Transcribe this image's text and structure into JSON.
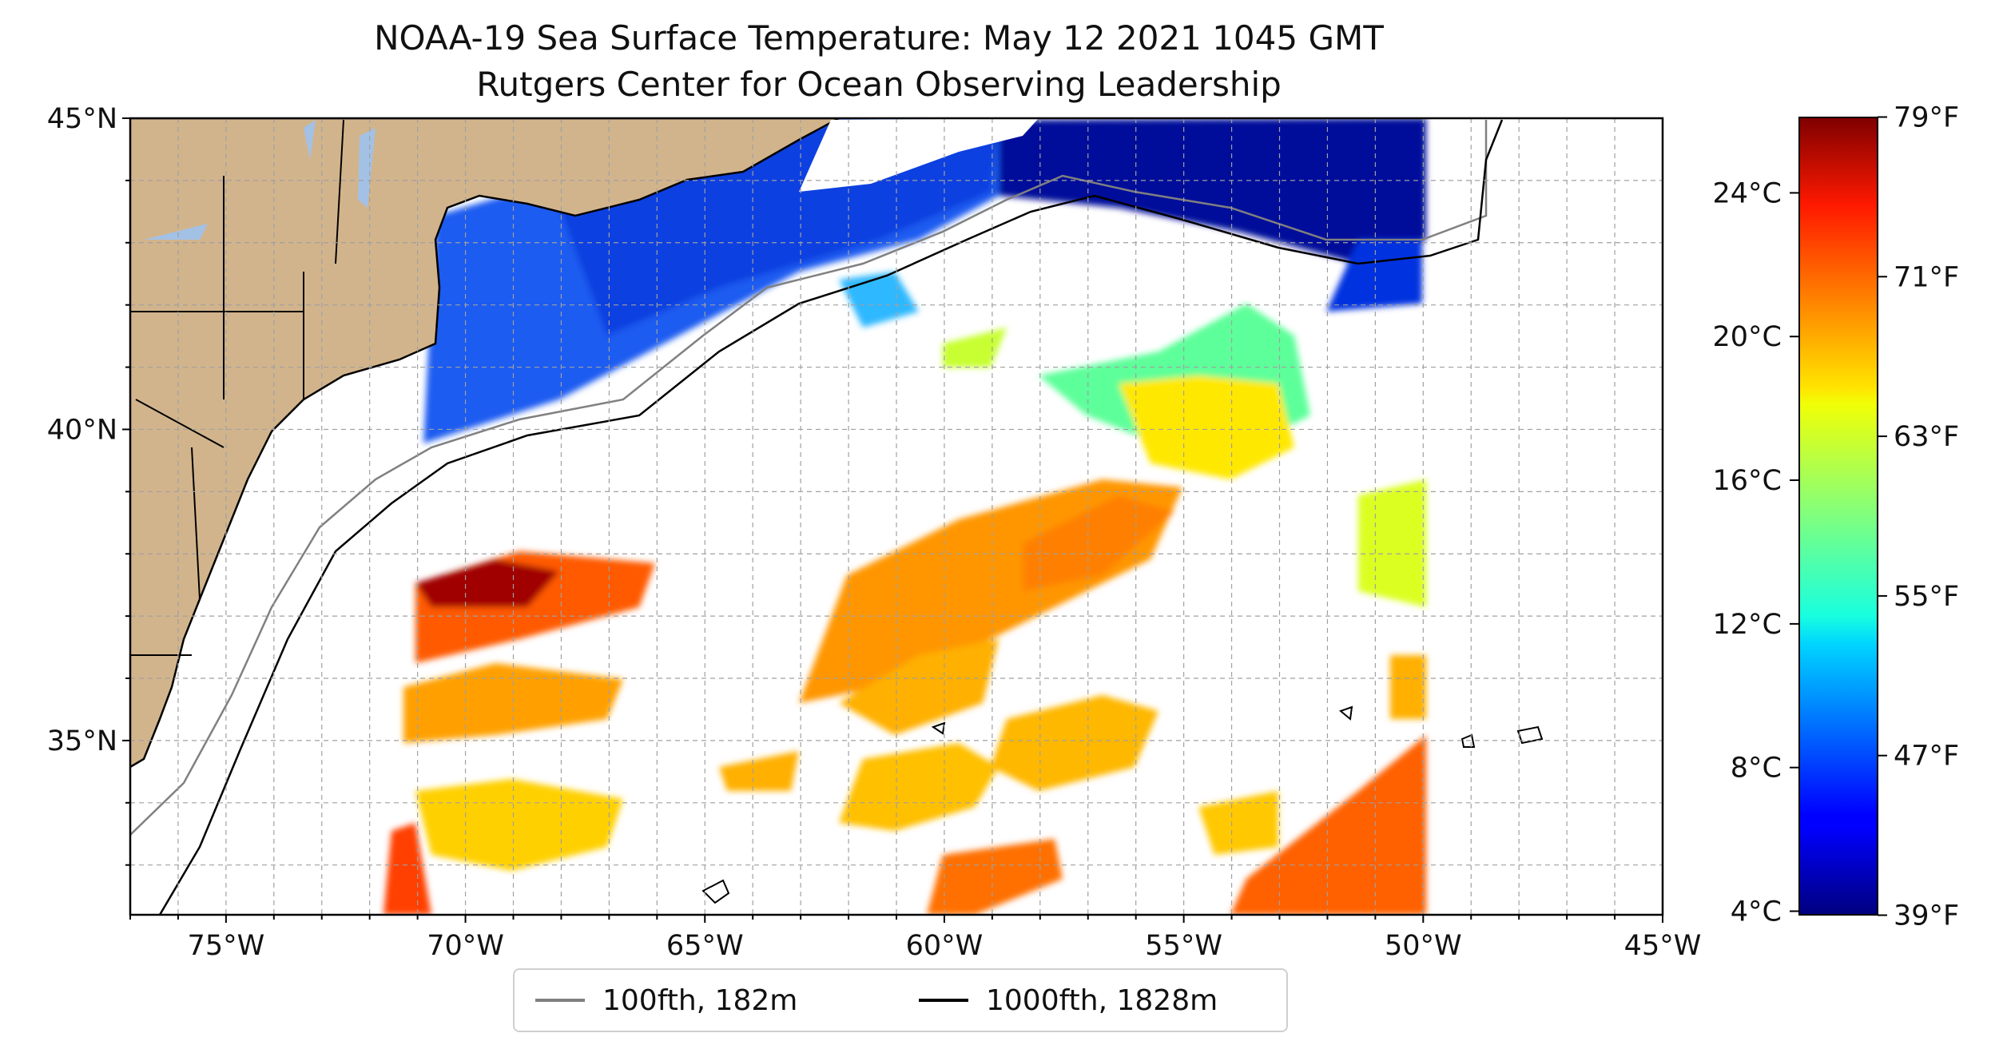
{
  "title": "NOAA-19 Sea Surface Temperature: May 12 2021 1045 GMT",
  "subtitle": "Rutgers Center for Ocean Observing Leadership",
  "map": {
    "lon_range": [
      -77,
      -45
    ],
    "lat_range": [
      32.2,
      45
    ],
    "lon_ticks": [
      {
        "value": -75,
        "label": "75°W"
      },
      {
        "value": -70,
        "label": "70°W"
      },
      {
        "value": -65,
        "label": "65°W"
      },
      {
        "value": -60,
        "label": "60°W"
      },
      {
        "value": -55,
        "label": "55°W"
      },
      {
        "value": -50,
        "label": "50°W"
      },
      {
        "value": -45,
        "label": "45°W"
      }
    ],
    "lat_ticks": [
      {
        "value": 45,
        "label": "45°N"
      },
      {
        "value": 40,
        "label": "40°N"
      },
      {
        "value": 35,
        "label": "35°N"
      }
    ],
    "land_color": "#d2b48c",
    "lake_color": "#a3c1e5",
    "grid": true
  },
  "legend": {
    "items": [
      {
        "label": "100fth, 182m",
        "color": "#808080"
      },
      {
        "label": "1000fth, 1828m",
        "color": "#000000"
      }
    ]
  },
  "colorbar": {
    "colormap": "jet",
    "celsius_range": [
      3.9,
      26.1
    ],
    "celsius_ticks": [
      {
        "value": 4,
        "label": "4°C"
      },
      {
        "value": 8,
        "label": "8°C"
      },
      {
        "value": 12,
        "label": "12°C"
      },
      {
        "value": 16,
        "label": "16°C"
      },
      {
        "value": 20,
        "label": "20°C"
      },
      {
        "value": 24,
        "label": "24°C"
      }
    ],
    "fahrenheit_ticks": [
      {
        "value": 39,
        "label": "39°F"
      },
      {
        "value": 47,
        "label": "47°F"
      },
      {
        "value": 55,
        "label": "55°F"
      },
      {
        "value": 63,
        "label": "63°F"
      },
      {
        "value": 71,
        "label": "71°F"
      },
      {
        "value": 79,
        "label": "79°F"
      }
    ]
  }
}
